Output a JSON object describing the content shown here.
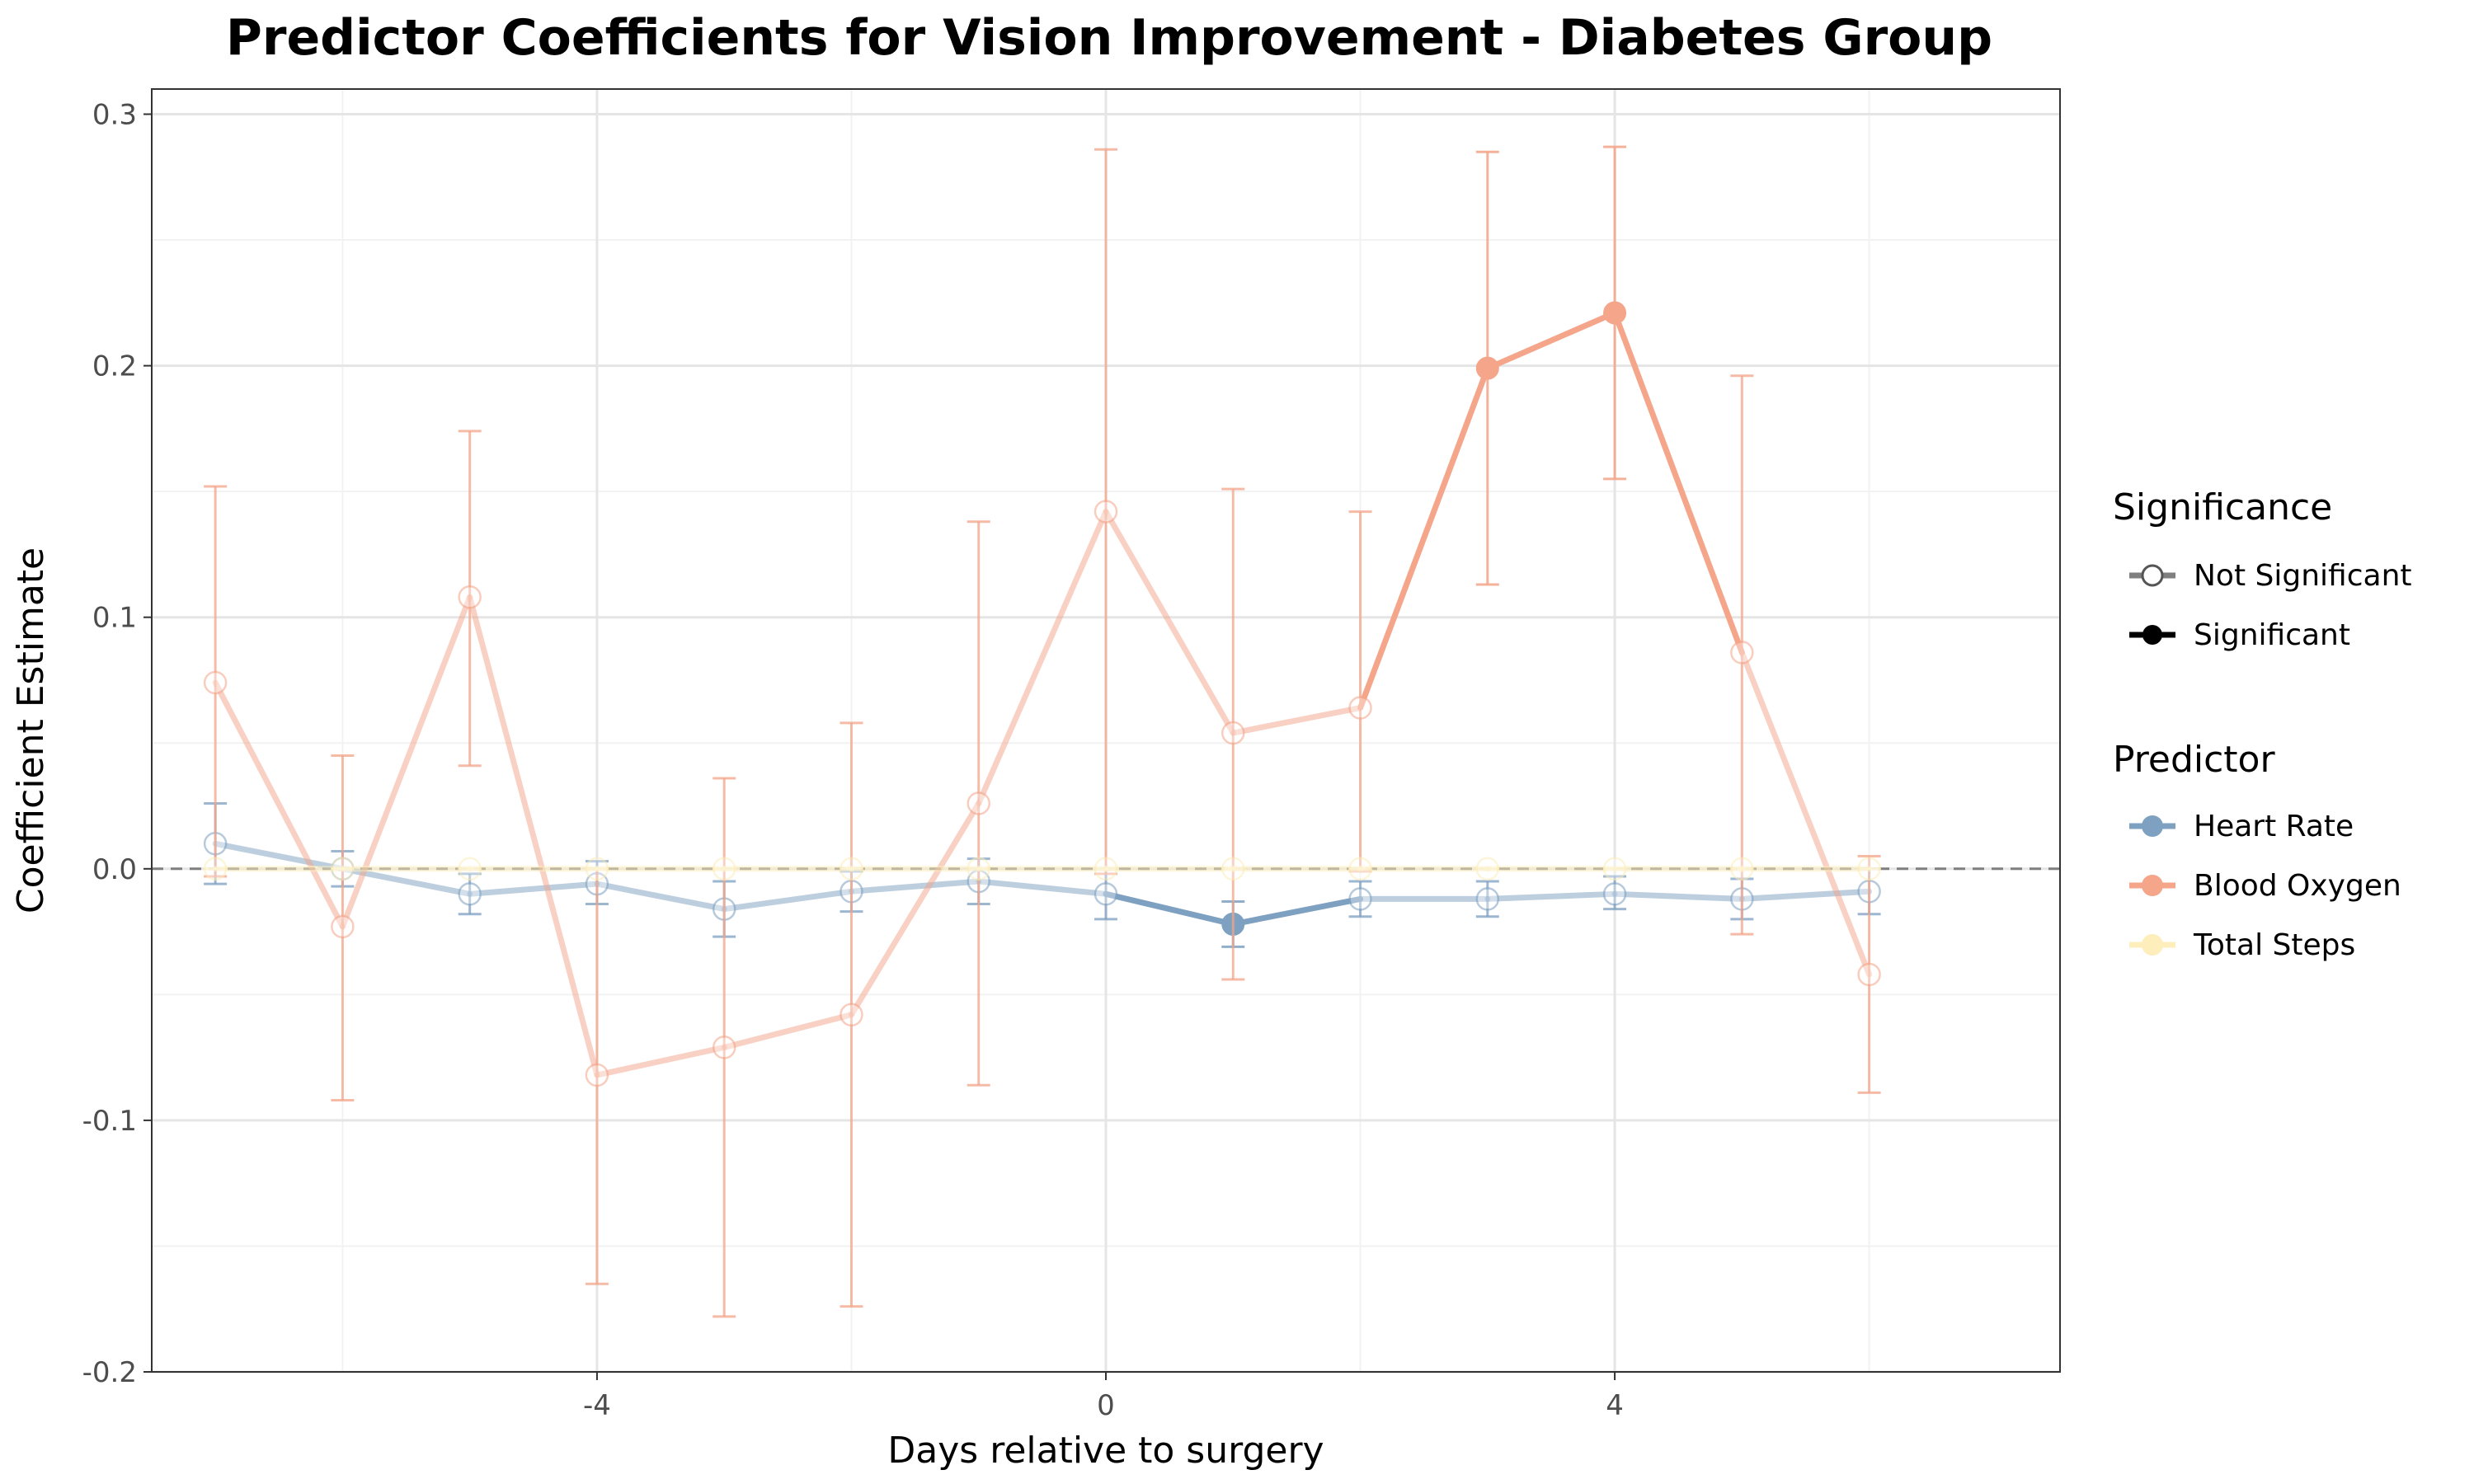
{
  "chart_data": {
    "type": "line",
    "title": "Predictor Coefficients for Vision Improvement - Diabetes Group",
    "xlabel": "Days relative to surgery",
    "ylabel": "Coefficient Estimate",
    "xlim": [
      -7.5,
      7.5
    ],
    "ylim": [
      -0.2,
      0.31
    ],
    "xticks": [
      -4,
      0,
      4
    ],
    "yticks": [
      -0.2,
      -0.1,
      0.0,
      0.1,
      0.2,
      0.3
    ],
    "ytick_labels": [
      "-0.2",
      "-0.1",
      "0.0",
      "0.1",
      "0.2",
      "0.3"
    ],
    "xtick_labels": [
      "-4",
      "0",
      "4"
    ],
    "reference_line": 0,
    "grid": true,
    "legend_position": "right",
    "x": [
      -7,
      -6,
      -5,
      -4,
      -3,
      -2,
      -1,
      0,
      1,
      2,
      3,
      4,
      5,
      6
    ],
    "series": [
      {
        "name": "Heart Rate",
        "color": "#7ea0c1",
        "values": [
          0.01,
          0.0,
          -0.01,
          -0.006,
          -0.016,
          -0.009,
          -0.005,
          -0.01,
          -0.022,
          -0.012,
          -0.012,
          -0.01,
          -0.012,
          -0.009
        ],
        "lower": [
          -0.006,
          -0.007,
          -0.018,
          -0.014,
          -0.027,
          -0.017,
          -0.014,
          -0.02,
          -0.031,
          -0.019,
          -0.019,
          -0.016,
          -0.02,
          -0.018
        ],
        "upper": [
          0.026,
          0.007,
          -0.002,
          0.003,
          -0.005,
          -0.001,
          0.004,
          0.0,
          -0.013,
          -0.005,
          -0.005,
          -0.003,
          -0.004,
          0.0
        ],
        "significant": [
          false,
          false,
          false,
          false,
          false,
          false,
          false,
          false,
          true,
          false,
          false,
          false,
          false,
          false
        ]
      },
      {
        "name": "Blood Oxygen",
        "color": "#f4a58a",
        "values": [
          0.074,
          -0.023,
          0.108,
          -0.082,
          -0.071,
          -0.058,
          0.026,
          0.142,
          0.054,
          0.064,
          0.199,
          0.221,
          0.086,
          -0.042
        ],
        "lower": [
          -0.003,
          -0.092,
          0.041,
          -0.165,
          -0.178,
          -0.174,
          -0.086,
          -0.002,
          -0.044,
          -0.001,
          0.113,
          0.155,
          -0.026,
          -0.089
        ],
        "upper": [
          0.152,
          0.045,
          0.174,
          0.0,
          0.036,
          0.058,
          0.138,
          0.286,
          0.151,
          0.142,
          0.285,
          0.287,
          0.196,
          0.005
        ],
        "significant": [
          false,
          false,
          false,
          false,
          false,
          false,
          false,
          false,
          false,
          false,
          true,
          true,
          false,
          false
        ]
      },
      {
        "name": "Total Steps",
        "color": "#fdeebb",
        "values": [
          0.0,
          0.0,
          0.0,
          0.0,
          0.0,
          0.0,
          0.0,
          0.0,
          0.0,
          0.0,
          0.0,
          0.0,
          0.0,
          0.0
        ],
        "lower": [
          0.0,
          0.0,
          0.0,
          0.0,
          0.0,
          0.0,
          0.0,
          0.0,
          0.0,
          0.0,
          0.0,
          0.0,
          0.0,
          0.0
        ],
        "upper": [
          0.0,
          0.0,
          0.0,
          0.0,
          0.0,
          0.0,
          0.0,
          0.0,
          0.0,
          0.0,
          0.0,
          0.0,
          0.0,
          0.0
        ],
        "significant": [
          false,
          false,
          false,
          false,
          false,
          false,
          false,
          false,
          false,
          false,
          false,
          false,
          false,
          false
        ]
      }
    ],
    "legend": {
      "significance_title": "Significance",
      "significance_items": [
        "Not Significant",
        "Significant"
      ],
      "predictor_title": "Predictor",
      "predictor_items": [
        "Heart Rate",
        "Blood Oxygen",
        "Total Steps"
      ]
    }
  }
}
